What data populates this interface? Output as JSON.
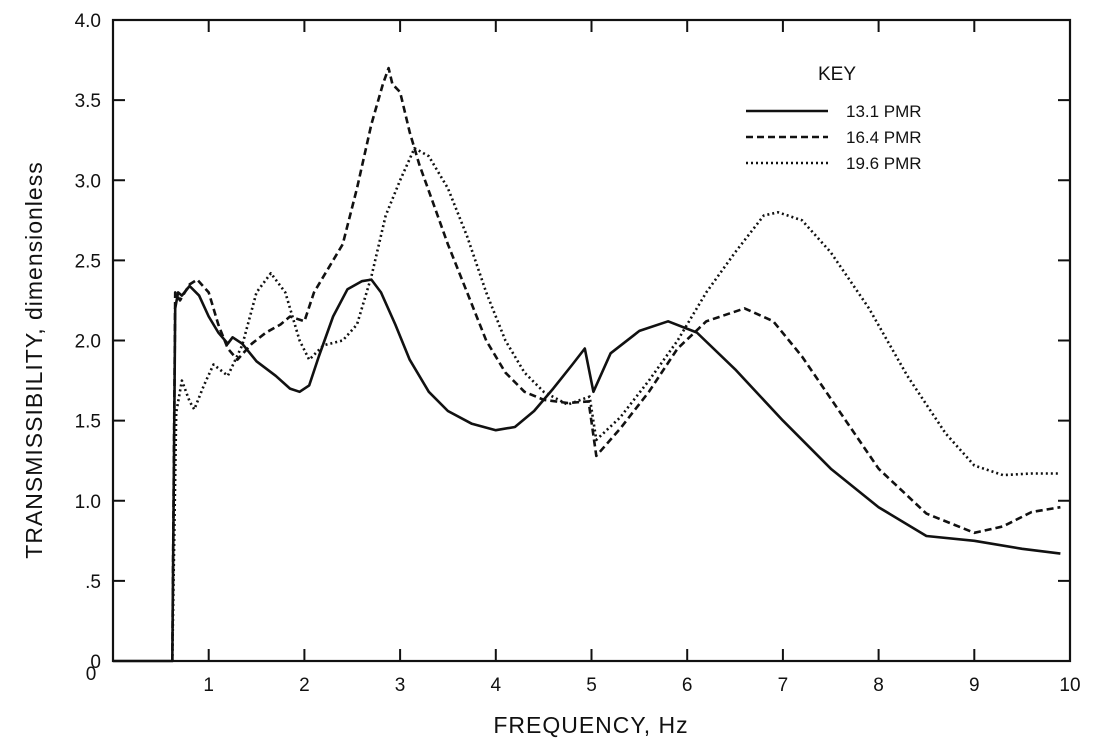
{
  "chart_data": {
    "type": "line",
    "title": "",
    "xlabel": "FREQUENCY, Hz",
    "ylabel": "TRANSMISSIBILITY, dimensionless",
    "xlim": [
      0,
      10
    ],
    "ylim": [
      0,
      4.0
    ],
    "x_ticks": [
      1,
      2,
      3,
      4,
      5,
      6,
      7,
      8,
      9,
      10
    ],
    "x_tick_labels": [
      "1",
      "2",
      "3",
      "4",
      "5",
      "6",
      "7",
      "8",
      "9",
      "10"
    ],
    "y_ticks": [
      0,
      0.5,
      1.0,
      1.5,
      2.0,
      2.5,
      3.0,
      3.5,
      4.0
    ],
    "y_tick_labels": [
      "0",
      ".5",
      "1.0",
      "1.5",
      "2.0",
      "2.5",
      "3.0",
      "3.5",
      "4.0"
    ],
    "x_origin_label": "0",
    "grid": false,
    "legend": {
      "title": "KEY",
      "placement": "top-right"
    },
    "series": [
      {
        "name": "13.1 PMR",
        "style": "solid",
        "color": "#111111",
        "points": [
          [
            0,
            0
          ],
          [
            0.6,
            0
          ],
          [
            0.62,
            0
          ],
          [
            0.65,
            2.2
          ],
          [
            0.68,
            2.3
          ],
          [
            0.72,
            2.28
          ],
          [
            0.8,
            2.34
          ],
          [
            0.9,
            2.28
          ],
          [
            1.0,
            2.15
          ],
          [
            1.1,
            2.05
          ],
          [
            1.2,
            1.98
          ],
          [
            1.25,
            2.02
          ],
          [
            1.35,
            1.98
          ],
          [
            1.5,
            1.87
          ],
          [
            1.7,
            1.78
          ],
          [
            1.85,
            1.7
          ],
          [
            1.95,
            1.68
          ],
          [
            2.05,
            1.72
          ],
          [
            2.15,
            1.9
          ],
          [
            2.3,
            2.15
          ],
          [
            2.45,
            2.32
          ],
          [
            2.6,
            2.37
          ],
          [
            2.7,
            2.38
          ],
          [
            2.8,
            2.3
          ],
          [
            2.95,
            2.1
          ],
          [
            3.1,
            1.88
          ],
          [
            3.3,
            1.68
          ],
          [
            3.5,
            1.56
          ],
          [
            3.75,
            1.48
          ],
          [
            4.0,
            1.44
          ],
          [
            4.2,
            1.46
          ],
          [
            4.4,
            1.56
          ],
          [
            4.6,
            1.7
          ],
          [
            4.8,
            1.85
          ],
          [
            4.93,
            1.95
          ],
          [
            5.02,
            1.68
          ],
          [
            5.2,
            1.92
          ],
          [
            5.5,
            2.06
          ],
          [
            5.8,
            2.12
          ],
          [
            6.1,
            2.05
          ],
          [
            6.5,
            1.82
          ],
          [
            7.0,
            1.5
          ],
          [
            7.5,
            1.2
          ],
          [
            8.0,
            0.96
          ],
          [
            8.5,
            0.78
          ],
          [
            9.0,
            0.75
          ],
          [
            9.5,
            0.7
          ],
          [
            9.9,
            0.67
          ]
        ]
      },
      {
        "name": "16.4 PMR",
        "style": "dashed",
        "color": "#111111",
        "points": [
          [
            0.62,
            0
          ],
          [
            0.65,
            2.3
          ],
          [
            0.7,
            2.25
          ],
          [
            0.8,
            2.35
          ],
          [
            0.88,
            2.38
          ],
          [
            1.0,
            2.3
          ],
          [
            1.1,
            2.1
          ],
          [
            1.2,
            1.95
          ],
          [
            1.3,
            1.88
          ],
          [
            1.45,
            1.98
          ],
          [
            1.6,
            2.05
          ],
          [
            1.75,
            2.1
          ],
          [
            1.85,
            2.15
          ],
          [
            2.0,
            2.12
          ],
          [
            2.1,
            2.3
          ],
          [
            2.25,
            2.45
          ],
          [
            2.4,
            2.6
          ],
          [
            2.55,
            2.95
          ],
          [
            2.7,
            3.35
          ],
          [
            2.82,
            3.6
          ],
          [
            2.88,
            3.7
          ],
          [
            2.92,
            3.6
          ],
          [
            3.0,
            3.55
          ],
          [
            3.1,
            3.3
          ],
          [
            3.2,
            3.1
          ],
          [
            3.35,
            2.85
          ],
          [
            3.5,
            2.6
          ],
          [
            3.7,
            2.3
          ],
          [
            3.9,
            2.0
          ],
          [
            4.1,
            1.8
          ],
          [
            4.3,
            1.68
          ],
          [
            4.5,
            1.63
          ],
          [
            4.75,
            1.61
          ],
          [
            4.97,
            1.62
          ],
          [
            5.05,
            1.28
          ],
          [
            5.3,
            1.45
          ],
          [
            5.6,
            1.68
          ],
          [
            5.9,
            1.95
          ],
          [
            6.2,
            2.12
          ],
          [
            6.6,
            2.2
          ],
          [
            6.9,
            2.12
          ],
          [
            7.2,
            1.9
          ],
          [
            7.6,
            1.55
          ],
          [
            8.0,
            1.2
          ],
          [
            8.5,
            0.92
          ],
          [
            9.0,
            0.8
          ],
          [
            9.3,
            0.84
          ],
          [
            9.6,
            0.93
          ],
          [
            9.9,
            0.96
          ]
        ]
      },
      {
        "name": "19.6 PMR",
        "style": "dotted",
        "color": "#111111",
        "points": [
          [
            0.62,
            0
          ],
          [
            0.66,
            1.55
          ],
          [
            0.72,
            1.75
          ],
          [
            0.8,
            1.62
          ],
          [
            0.85,
            1.57
          ],
          [
            0.95,
            1.72
          ],
          [
            1.05,
            1.85
          ],
          [
            1.2,
            1.78
          ],
          [
            1.35,
            1.97
          ],
          [
            1.5,
            2.3
          ],
          [
            1.65,
            2.42
          ],
          [
            1.8,
            2.3
          ],
          [
            1.95,
            2.0
          ],
          [
            2.05,
            1.88
          ],
          [
            2.2,
            1.97
          ],
          [
            2.4,
            2.0
          ],
          [
            2.55,
            2.1
          ],
          [
            2.7,
            2.4
          ],
          [
            2.85,
            2.78
          ],
          [
            3.0,
            3.0
          ],
          [
            3.15,
            3.2
          ],
          [
            3.3,
            3.15
          ],
          [
            3.5,
            2.95
          ],
          [
            3.7,
            2.65
          ],
          [
            3.9,
            2.3
          ],
          [
            4.1,
            2.0
          ],
          [
            4.3,
            1.8
          ],
          [
            4.5,
            1.68
          ],
          [
            4.75,
            1.6
          ],
          [
            4.98,
            1.65
          ],
          [
            5.05,
            1.38
          ],
          [
            5.3,
            1.52
          ],
          [
            5.6,
            1.75
          ],
          [
            5.9,
            2.0
          ],
          [
            6.2,
            2.3
          ],
          [
            6.5,
            2.55
          ],
          [
            6.8,
            2.78
          ],
          [
            6.95,
            2.8
          ],
          [
            7.2,
            2.75
          ],
          [
            7.5,
            2.55
          ],
          [
            7.9,
            2.2
          ],
          [
            8.3,
            1.78
          ],
          [
            8.7,
            1.42
          ],
          [
            9.0,
            1.22
          ],
          [
            9.3,
            1.16
          ],
          [
            9.6,
            1.17
          ],
          [
            9.9,
            1.17
          ]
        ]
      }
    ]
  }
}
